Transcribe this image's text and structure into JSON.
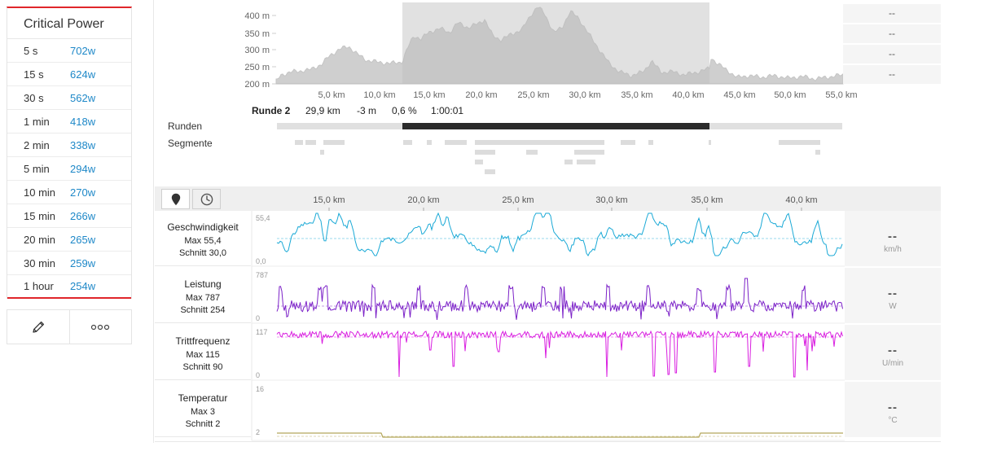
{
  "critical_power": {
    "title": "Critical Power",
    "rows": [
      {
        "duration": "5 s",
        "value": "702w"
      },
      {
        "duration": "15 s",
        "value": "624w"
      },
      {
        "duration": "30 s",
        "value": "562w"
      },
      {
        "duration": "1 min",
        "value": "418w"
      },
      {
        "duration": "2 min",
        "value": "338w"
      },
      {
        "duration": "5 min",
        "value": "294w"
      },
      {
        "duration": "10 min",
        "value": "270w"
      },
      {
        "duration": "15 min",
        "value": "266w"
      },
      {
        "duration": "20 min",
        "value": "265w"
      },
      {
        "duration": "30 min",
        "value": "259w"
      },
      {
        "duration": "1 hour",
        "value": "254w"
      }
    ],
    "actions": [
      {
        "name": "edit-button",
        "icon": "pencil-icon"
      },
      {
        "name": "more-options-button",
        "icon": "more-horizontal-icon"
      }
    ]
  },
  "overview": {
    "elevation_axis": [
      "400 m",
      "350 m",
      "300 m",
      "250 m",
      "200 m"
    ],
    "distance_axis": [
      "5,0 km",
      "10,0 km",
      "15,0 km",
      "20,0 km",
      "25,0 km",
      "30,0 km",
      "35,0 km",
      "40,0 km",
      "45,0 km",
      "50,0 km",
      "55,0 km"
    ],
    "side_values": [
      "--",
      "--",
      "--",
      "--"
    ],
    "selected_lap": {
      "name": "Runde 2",
      "distance": "29,9 km",
      "elevation": "-3 m",
      "grade": "0,6 %",
      "time": "1:00:01"
    },
    "rows": {
      "laps": "Runden",
      "segments": "Segmente"
    },
    "colors": {
      "elevation": "#cfcfcf",
      "selection": "#e0e0e0",
      "selected_lap": "#2b2b2b",
      "lap_bar": "#e0e0e0"
    }
  },
  "chart": {
    "toolbar": {
      "distance_icon": "map-pin-icon",
      "time_icon": "clock-icon"
    },
    "distance_axis": [
      "15,0 km",
      "20,0 km",
      "25,0 km",
      "30,0 km",
      "35,0 km",
      "40,0 km"
    ],
    "streams": [
      {
        "key": "speed",
        "name": "Geschwindigkeit",
        "max": "Max 55,4",
        "avg": "Schnitt 30,0",
        "axis_top": "55,4",
        "axis_bottom": "0,0",
        "side": "--",
        "unit": "km/h",
        "color": "#1aa9d6"
      },
      {
        "key": "power",
        "name": "Leistung",
        "max": "Max 787",
        "avg": "Schnitt 254",
        "axis_top": "787",
        "axis_bottom": "0",
        "side": "--",
        "unit": "W",
        "color": "#7c22c8"
      },
      {
        "key": "cadence",
        "name": "Trittfrequenz",
        "max": "Max 115",
        "avg": "Schnitt 90",
        "axis_top": "117",
        "axis_bottom": "0",
        "side": "--",
        "unit": "U/min",
        "color": "#d91fe0"
      },
      {
        "key": "temp",
        "name": "Temperatur",
        "max": "Max 3",
        "avg": "Schnitt 2",
        "axis_top": "16",
        "axis_bottom": "2",
        "side": "--",
        "unit": "°C",
        "color": "#b5a75c"
      }
    ]
  }
}
